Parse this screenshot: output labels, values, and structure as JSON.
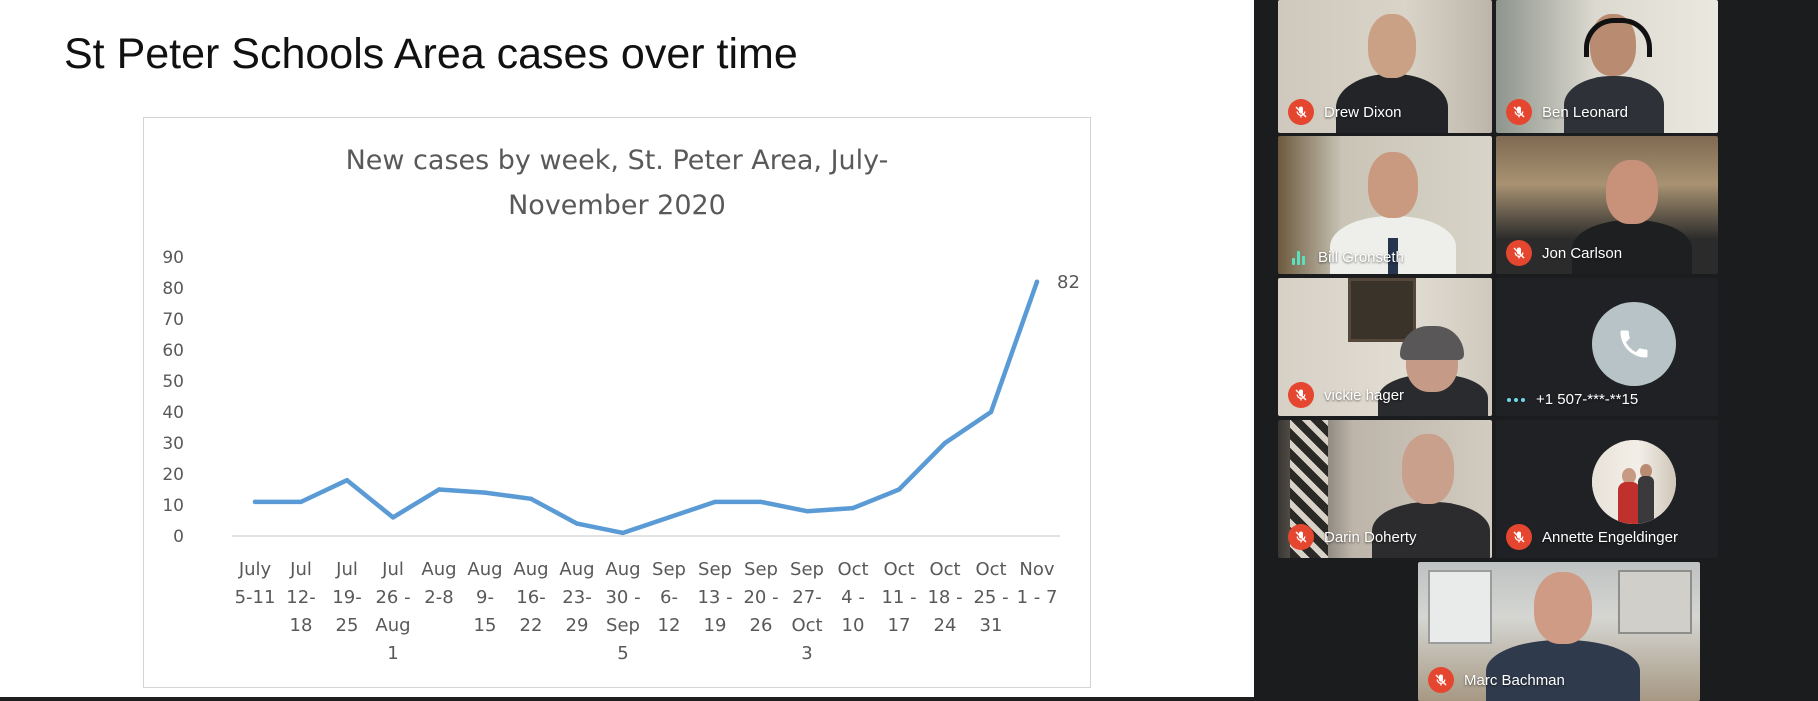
{
  "slide": {
    "title": "St Peter Schools Area cases over time"
  },
  "chart_data": {
    "type": "line",
    "title_lines": [
      "New cases by week, St. Peter Area, July-",
      "November 2020"
    ],
    "categories": [
      [
        "July",
        "5-11"
      ],
      [
        "Jul",
        "12-",
        "18"
      ],
      [
        "Jul",
        "19-",
        "25"
      ],
      [
        "Jul",
        "26 -",
        "Aug",
        "1"
      ],
      [
        "Aug",
        "2-8"
      ],
      [
        "Aug",
        "9-",
        "15"
      ],
      [
        "Aug",
        "16-",
        "22"
      ],
      [
        "Aug",
        "23-",
        "29"
      ],
      [
        "Aug",
        "30 -",
        "Sep",
        "5"
      ],
      [
        "Sep",
        "6-",
        "12"
      ],
      [
        "Sep",
        "13 -",
        "19"
      ],
      [
        "Sep",
        "20 -",
        "26"
      ],
      [
        "Sep",
        "27-",
        "Oct",
        "3"
      ],
      [
        "Oct",
        "4 -",
        "10"
      ],
      [
        "Oct",
        "11 -",
        "17"
      ],
      [
        "Oct",
        "18 -",
        "24"
      ],
      [
        "Oct",
        "25 -",
        "31"
      ],
      [
        "Nov",
        "1 - 7"
      ]
    ],
    "values": [
      11,
      11,
      18,
      6,
      15,
      14,
      12,
      4,
      1,
      6,
      11,
      11,
      8,
      9,
      15,
      30,
      40,
      82
    ],
    "ylim": [
      0,
      90
    ],
    "yticks": [
      0,
      10,
      20,
      30,
      40,
      50,
      60,
      70,
      80,
      90
    ],
    "data_labels": [
      {
        "index": 17,
        "text": "82"
      }
    ],
    "xlabel": "",
    "ylabel": "",
    "grid": false,
    "legend": "none",
    "line_color": "#5b9bd5"
  },
  "meeting": {
    "accent_mic_off": "#e5462f",
    "participants": [
      {
        "name": "Drew Dixon",
        "status": "muted",
        "icon": "mic-off-icon"
      },
      {
        "name": "Ben Leonard",
        "status": "muted",
        "icon": "mic-off-icon"
      },
      {
        "name": "Bill Gronseth",
        "status": "speaking",
        "icon": "speaking-indicator-icon"
      },
      {
        "name": "Jon Carlson",
        "status": "muted",
        "icon": "mic-off-icon"
      },
      {
        "name": "vickie hager",
        "status": "muted",
        "icon": "mic-off-icon"
      },
      {
        "name": "+1 507-***-**15",
        "status": "phone",
        "icon": "phone-icon"
      },
      {
        "name": "Darin Doherty",
        "status": "muted",
        "icon": "mic-off-icon"
      },
      {
        "name": "Annette Engeldinger",
        "status": "muted",
        "icon": "mic-off-icon"
      },
      {
        "name": "Marc Bachman",
        "status": "muted",
        "icon": "mic-off-icon"
      }
    ]
  }
}
